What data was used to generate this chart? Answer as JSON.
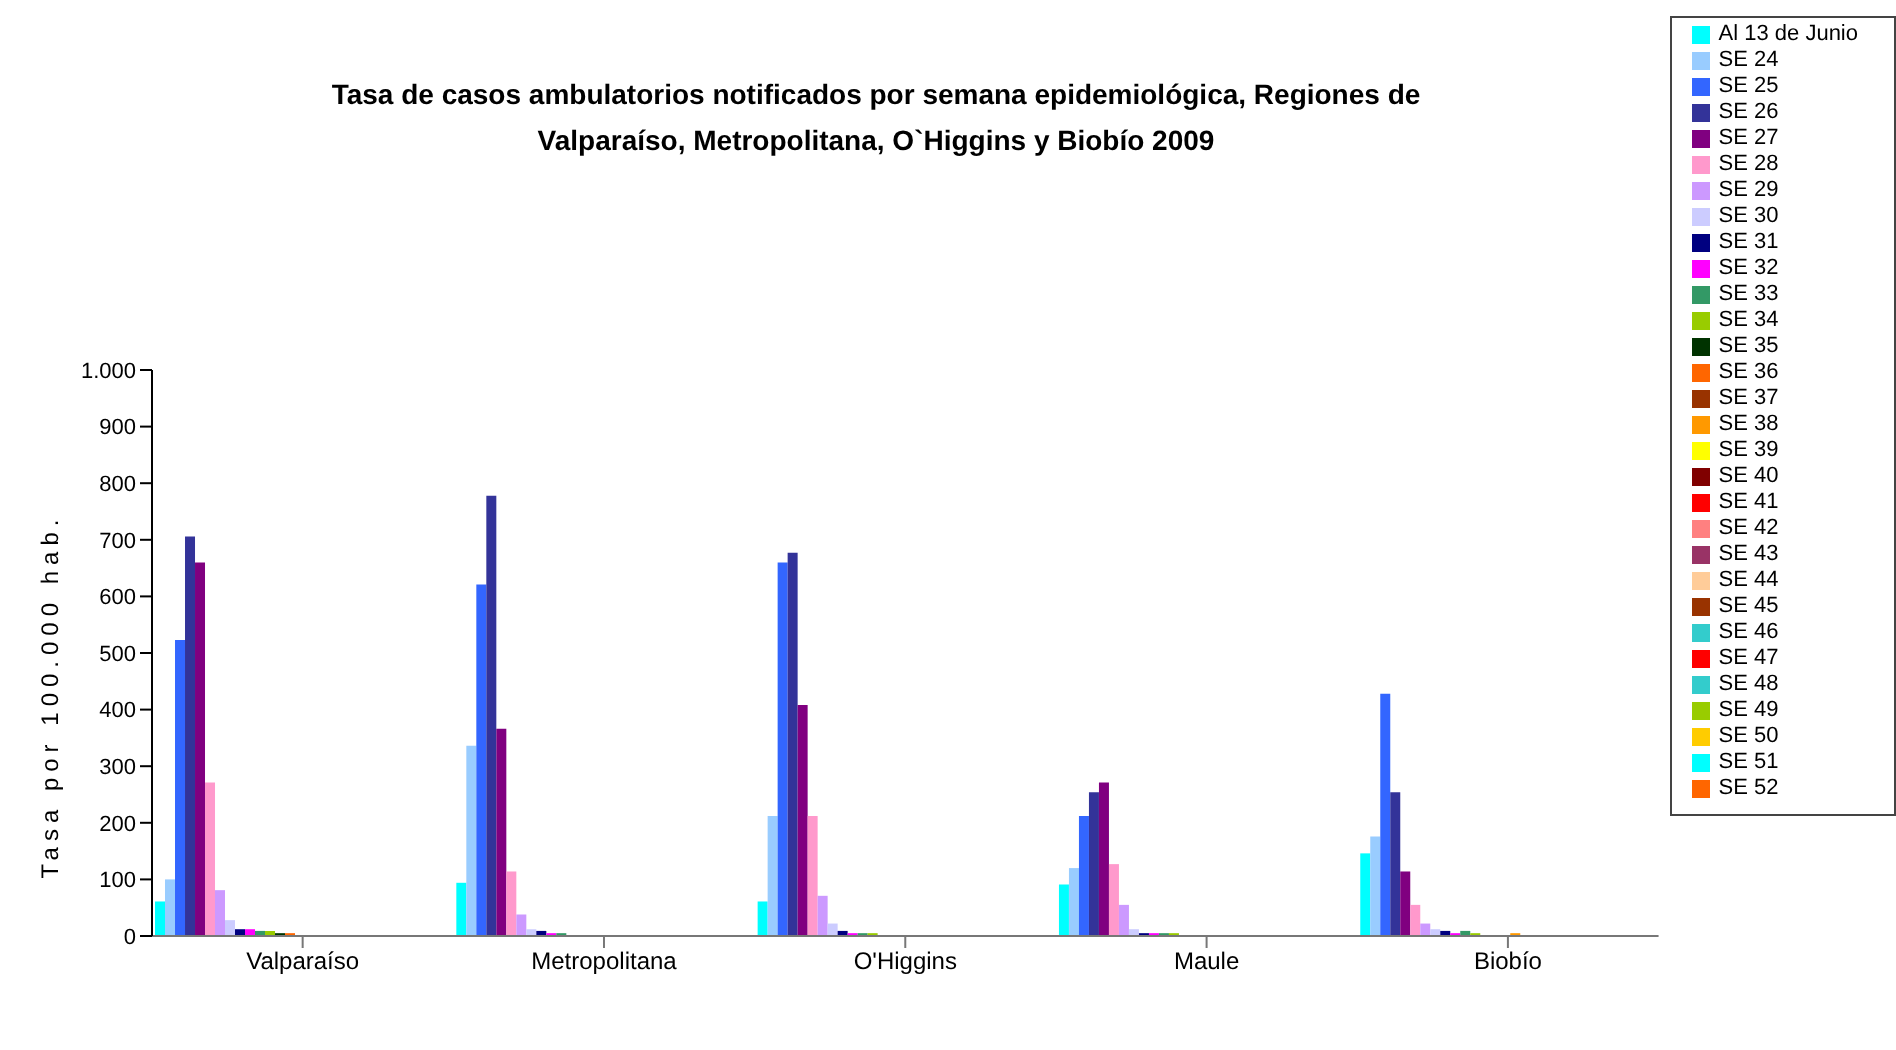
{
  "chart_data": {
    "type": "bar",
    "title": "Tasa de casos ambulatorios notificados por semana epidemiológica, Regiones de Valparaíso, Metropolitana, O`Higgins y Biobío 2009",
    "ylabel": "Tasa por 100.000 hab.",
    "categories": [
      "Valparaíso",
      "Metropolitana",
      "O'Higgins",
      "Maule",
      "Biobío"
    ],
    "ylim": [
      0,
      1000
    ],
    "yticks": [
      0,
      100,
      200,
      300,
      400,
      500,
      600,
      700,
      800,
      900,
      {
        "value": 1000,
        "label": "1.000"
      }
    ],
    "grid": false,
    "legend": "top right",
    "series": [
      {
        "name": "Al 13 de Junio",
        "color": "#00ffff",
        "values": [
          61,
          94,
          61,
          91,
          146
        ]
      },
      {
        "name": "SE 24",
        "color": "#99ccff",
        "values": [
          100,
          336,
          212,
          120,
          176
        ]
      },
      {
        "name": "SE 25",
        "color": "#3366ff",
        "values": [
          523,
          621,
          660,
          212,
          428
        ]
      },
      {
        "name": "SE 26",
        "color": "#333399",
        "values": [
          706,
          778,
          677,
          254,
          254
        ]
      },
      {
        "name": "SE 27",
        "color": "#800080",
        "values": [
          660,
          366,
          408,
          271,
          114
        ]
      },
      {
        "name": "SE 28",
        "color": "#ff99cc",
        "values": [
          271,
          114,
          212,
          127,
          55
        ]
      },
      {
        "name": "SE 29",
        "color": "#cc99ff",
        "values": [
          81,
          38,
          71,
          55,
          22
        ]
      },
      {
        "name": "SE 30",
        "color": "#ccccff",
        "values": [
          28,
          12,
          22,
          12,
          12
        ]
      },
      {
        "name": "SE 31",
        "color": "#000080",
        "values": [
          12,
          9,
          9,
          5,
          9
        ]
      },
      {
        "name": "SE 32",
        "color": "#ff00ff",
        "values": [
          12,
          5,
          5,
          5,
          5
        ]
      },
      {
        "name": "SE 33",
        "color": "#339966",
        "values": [
          9,
          5,
          5,
          5,
          9
        ]
      },
      {
        "name": "SE 34",
        "color": "#99cc00",
        "values": [
          9,
          0,
          5,
          5,
          5
        ]
      },
      {
        "name": "SE 35",
        "color": "#003300",
        "values": [
          5,
          0,
          0,
          0,
          0
        ]
      },
      {
        "name": "SE 36",
        "color": "#ff6600",
        "values": [
          5,
          0,
          0,
          0,
          0
        ]
      },
      {
        "name": "SE 37",
        "color": "#993300",
        "values": [
          0,
          0,
          0,
          0,
          0
        ]
      },
      {
        "name": "SE 38",
        "color": "#ff9900",
        "values": [
          0,
          0,
          0,
          0,
          5
        ]
      },
      {
        "name": "SE 39",
        "color": "#ffff00",
        "values": [
          0,
          0,
          0,
          0,
          0
        ]
      },
      {
        "name": "SE 40",
        "color": "#800000",
        "values": [
          0,
          0,
          0,
          0,
          0
        ]
      },
      {
        "name": "SE 41",
        "color": "#ff0000",
        "values": [
          0,
          0,
          0,
          0,
          0
        ]
      },
      {
        "name": "SE 42",
        "color": "#ff8080",
        "values": [
          0,
          0,
          0,
          0,
          0
        ]
      },
      {
        "name": "SE 43",
        "color": "#993366",
        "values": [
          0,
          0,
          0,
          0,
          0
        ]
      },
      {
        "name": "SE 44",
        "color": "#ffcc99",
        "values": [
          0,
          0,
          0,
          0,
          0
        ]
      },
      {
        "name": "SE 45",
        "color": "#993300",
        "values": [
          0,
          0,
          0,
          0,
          0
        ]
      },
      {
        "name": "SE 46",
        "color": "#33cccc",
        "values": [
          0,
          0,
          0,
          0,
          0
        ]
      },
      {
        "name": "SE 47",
        "color": "#ff0000",
        "values": [
          0,
          0,
          0,
          0,
          0
        ]
      },
      {
        "name": "SE 48",
        "color": "#33cccc",
        "values": [
          0,
          0,
          0,
          0,
          0
        ]
      },
      {
        "name": "SE 49",
        "color": "#99cc00",
        "values": [
          0,
          0,
          0,
          0,
          0
        ]
      },
      {
        "name": "SE 50",
        "color": "#ffcc00",
        "values": [
          0,
          0,
          0,
          0,
          0
        ]
      },
      {
        "name": "SE 51",
        "color": "#00ffff",
        "values": [
          0,
          0,
          0,
          0,
          0
        ]
      },
      {
        "name": "SE 52",
        "color": "#ff6600",
        "values": [
          0,
          0,
          0,
          0,
          0
        ]
      }
    ]
  }
}
